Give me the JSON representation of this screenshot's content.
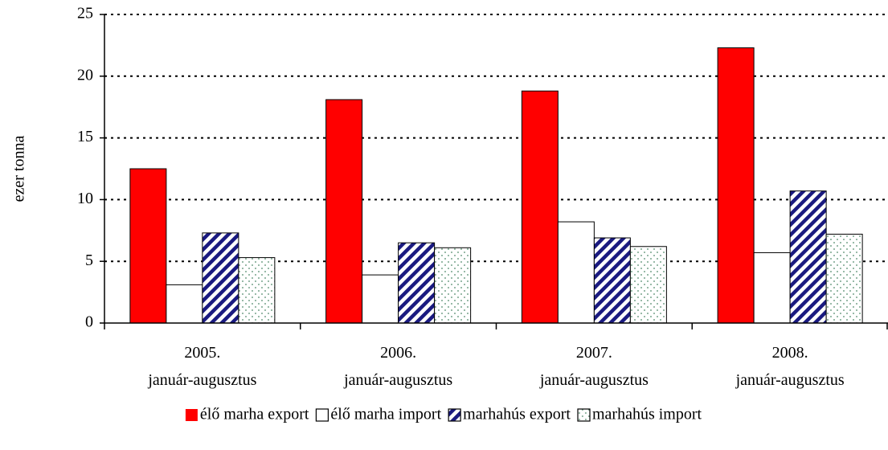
{
  "chart_data": {
    "type": "bar",
    "y_label": "ezer tonna",
    "categories": [
      [
        "2005.",
        "január-augusztus"
      ],
      [
        "2006.",
        "január-augusztus"
      ],
      [
        "2007.",
        "január-augusztus"
      ],
      [
        "2008.",
        "január-augusztus"
      ]
    ],
    "series": [
      {
        "name": "élő marha export",
        "color": "#ff0000",
        "pattern": "solid",
        "values": [
          12.5,
          18.1,
          18.8,
          22.3
        ]
      },
      {
        "name": "élő marha import",
        "color": "#ffffff",
        "pattern": "solid",
        "values": [
          3.1,
          3.9,
          8.2,
          5.7
        ]
      },
      {
        "name": "marhahús export",
        "color": "#1a1a80",
        "pattern": "hatch",
        "values": [
          7.3,
          6.5,
          6.9,
          10.7
        ]
      },
      {
        "name": "marhahús import",
        "color": "#4f8a6a",
        "pattern": "dots",
        "values": [
          5.3,
          6.1,
          6.2,
          7.2
        ]
      }
    ],
    "ylim": [
      0,
      25
    ],
    "yticks": [
      0,
      5,
      10,
      15,
      20,
      25
    ],
    "grid": true,
    "legend": "bottom"
  }
}
